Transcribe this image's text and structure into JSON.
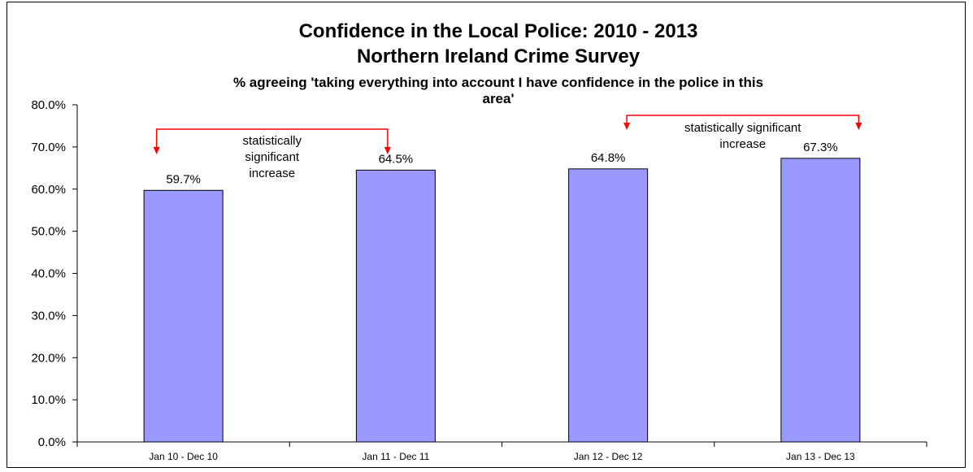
{
  "chart_data": {
    "type": "bar",
    "title": "Confidence in the Local Police: 2010 - 2013",
    "subtitle": "Northern Ireland Crime Survey",
    "subtitle2_line1": "% agreeing 'taking everything into account I have confidence in the police in this",
    "subtitle2_line2": "area'",
    "categories": [
      "Jan 10 - Dec 10",
      "Jan 11 - Dec 11",
      "Jan 12 - Dec 12",
      "Jan 13 - Dec 13"
    ],
    "values": [
      59.7,
      64.5,
      64.8,
      67.3
    ],
    "data_labels": [
      "59.7%",
      "64.5%",
      "64.8%",
      "67.3%"
    ],
    "ylim": [
      0,
      80
    ],
    "y_ticks": [
      "0.0%",
      "10.0%",
      "20.0%",
      "30.0%",
      "40.0%",
      "50.0%",
      "60.0%",
      "70.0%",
      "80.0%"
    ],
    "y_tick_values": [
      0,
      10,
      20,
      30,
      40,
      50,
      60,
      70,
      80
    ],
    "grid": false,
    "bar_color": "#9999ff",
    "annotation_color": "#ff0000",
    "annotations": [
      {
        "from": 0,
        "to": 1,
        "lines": [
          "statistically",
          "significant",
          "increase"
        ]
      },
      {
        "from": 2,
        "to": 3,
        "lines": [
          "statistically significant",
          "increase"
        ]
      }
    ]
  }
}
